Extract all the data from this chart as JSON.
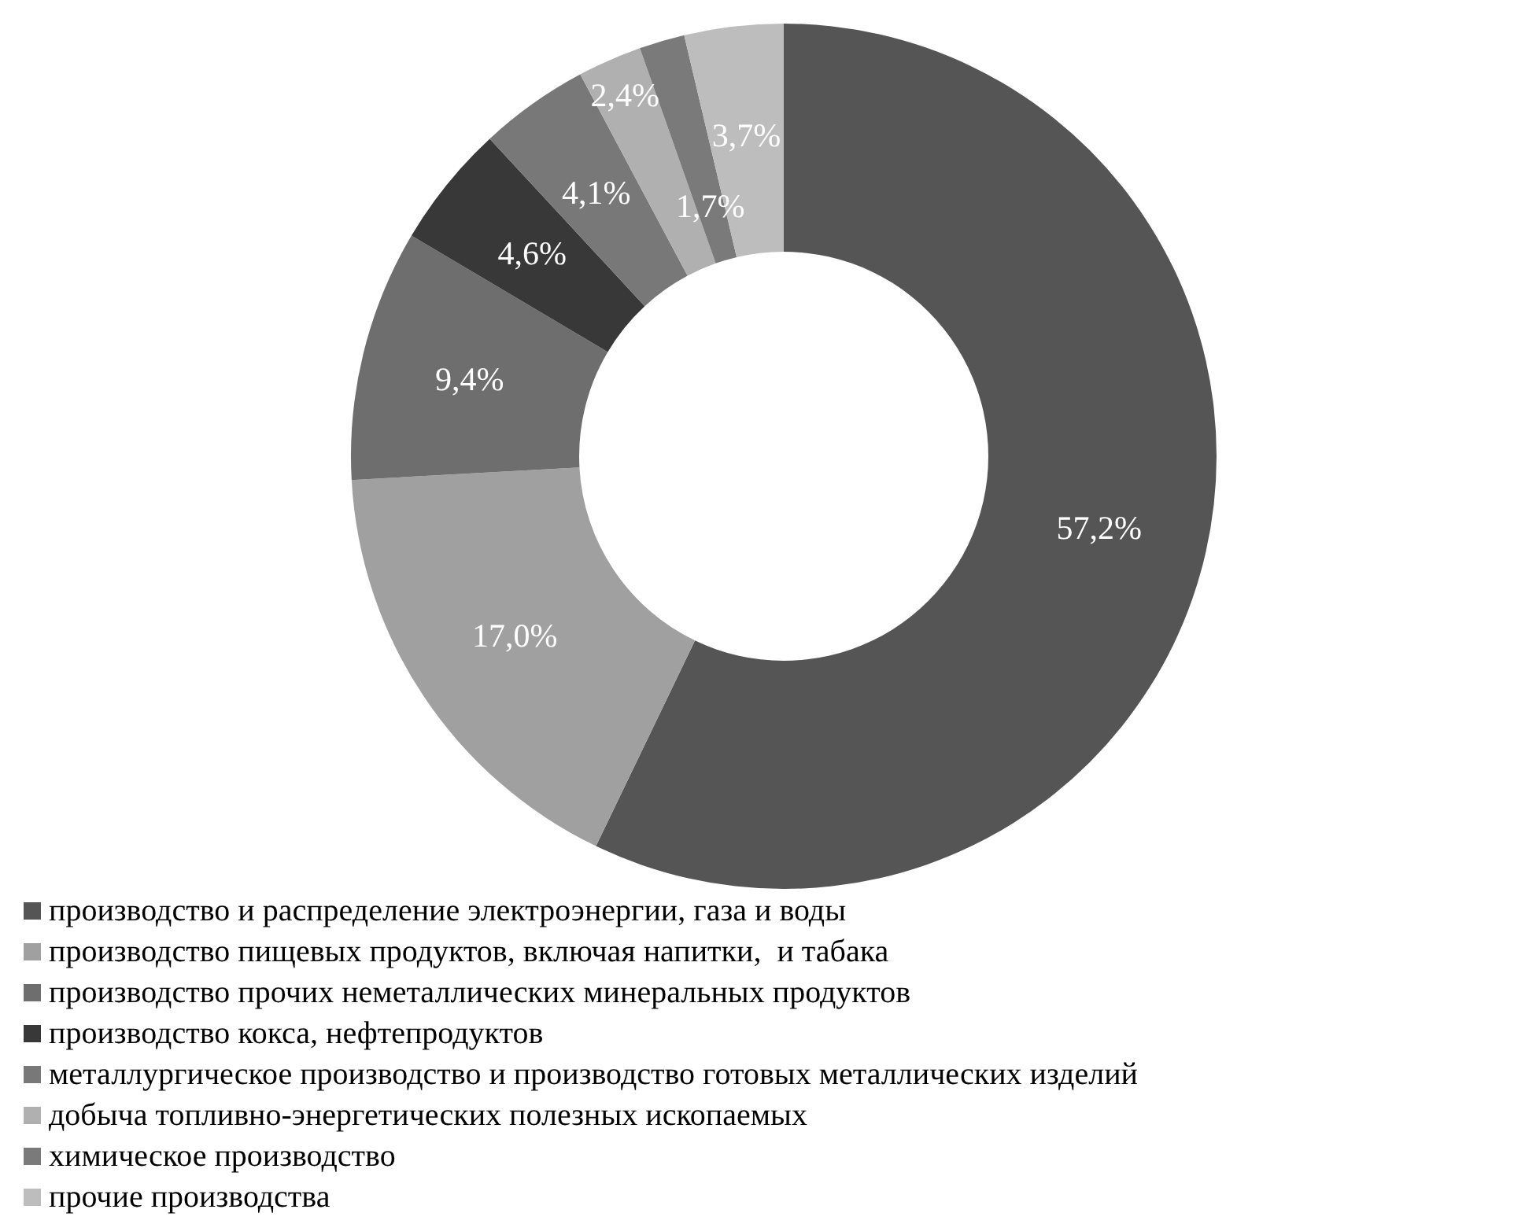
{
  "chart_data": {
    "type": "donut",
    "categories": [
      "производство и распределение электроэнергии, газа и воды",
      "производство пищевых продуктов, включая напитки,  и табака",
      "производство прочих неметаллических минеральных продуктов",
      "производство кокса, нефтепродуктов",
      "металлургическое производство и производство готовых металлических изделий",
      "добыча топливно-энергетических полезных ископаемых",
      "химическое производство",
      "прочие производства"
    ],
    "values": [
      57.2,
      17.0,
      9.4,
      4.6,
      4.1,
      2.4,
      1.7,
      3.7
    ],
    "colors": [
      "#555555",
      "#a0a0a0",
      "#6e6e6e",
      "#383838",
      "#787878",
      "#b0b0b0",
      "#7a7a7a",
      "#bdbdbd"
    ],
    "value_labels": [
      "57,2%",
      "17,0%",
      "9,4%",
      "4,6%",
      "4,1%",
      "2,4%",
      "1,7%",
      "3,7%"
    ],
    "legend": "bottom"
  }
}
